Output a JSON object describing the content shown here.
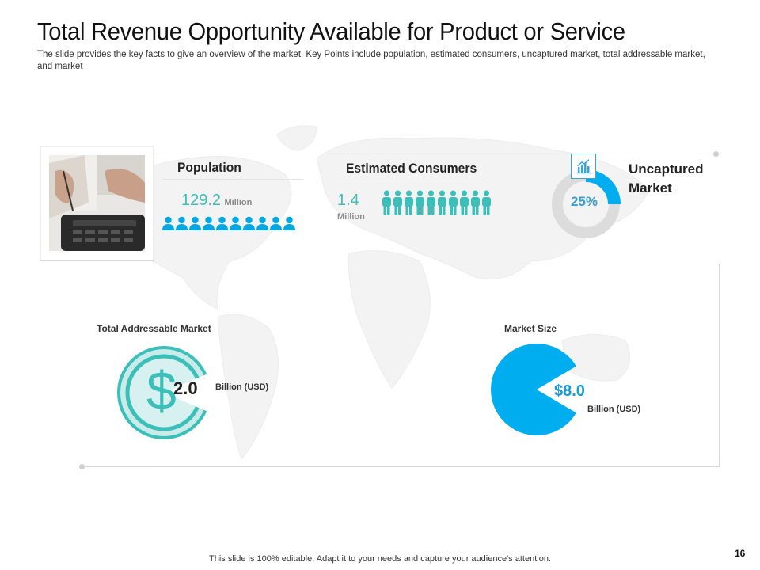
{
  "slide": {
    "title": "Total Revenue Opportunity Available for Product or Service",
    "subtitle": "The slide provides  the key facts to give  an overview  of the market. Key Points include population, estimated consumers, uncaptured market, total addressable  market, and market",
    "footer": "This slide is 100% editable. Adapt it to your needs and capture your audience's attention.",
    "page_number": "16"
  },
  "population": {
    "label": "Population",
    "value": "129.2",
    "unit": "Million",
    "icon_count": 10,
    "icon": "person-icon"
  },
  "consumers": {
    "label": "Estimated Consumers",
    "value": "1.4",
    "unit": "Million",
    "icon_count": 10,
    "icon": "standing-person-icon"
  },
  "uncaptured": {
    "label_line1": "Uncaptured",
    "label_line2": "Market",
    "percent_text": "25%",
    "fraction": 0.25,
    "icon": "chart-growth-icon"
  },
  "tam": {
    "label": "Total Addressable  Market",
    "value": "2.0",
    "unit": "Billion (USD)",
    "symbol": "$",
    "icon": "dollar-icon"
  },
  "market_size": {
    "label": "Market Size",
    "value": "$8.0",
    "unit": "Billion (USD)",
    "fraction": 0.83
  },
  "colors": {
    "teal": "#3bbfb8",
    "teal_light": "#c9ecea",
    "blue": "#00aeef",
    "ring_gray": "#dcdcdc",
    "map_gray": "#f2f2f2"
  }
}
